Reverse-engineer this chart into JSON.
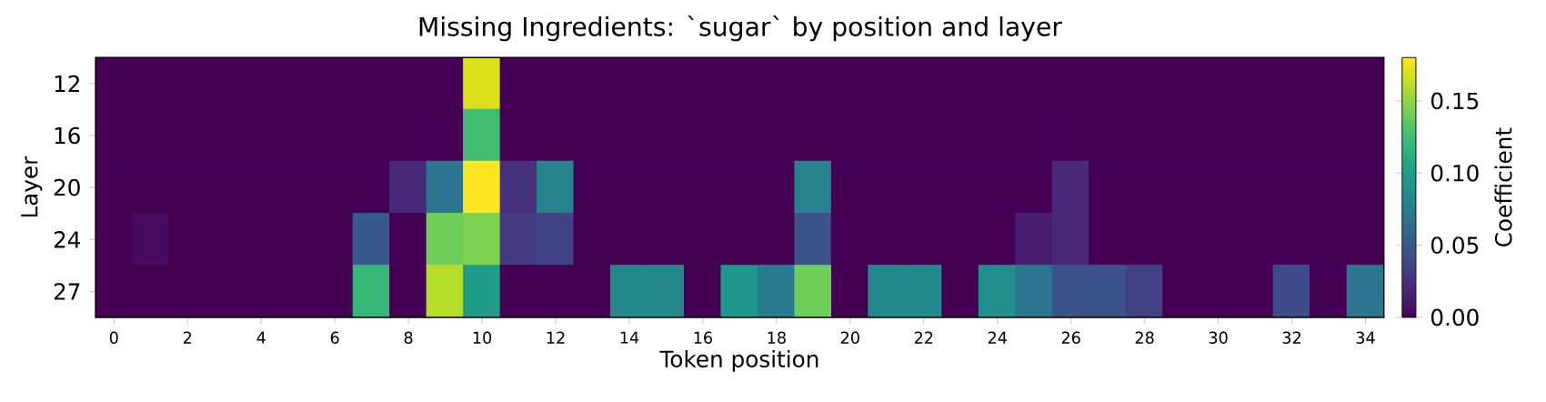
{
  "chart_data": {
    "type": "heatmap",
    "title": "Missing Ingredients: `sugar` by position and layer",
    "xlabel": "Token position",
    "ylabel": "Layer",
    "clabel": "Coefficient",
    "categories": [
      "0",
      null,
      "2",
      null,
      "4",
      null,
      "6",
      null,
      "8",
      null,
      "10",
      null,
      "12",
      null,
      "14",
      null,
      "16",
      null,
      "18",
      null,
      "20",
      null,
      "22",
      null,
      "24",
      null,
      "26",
      null,
      "28",
      null,
      "30",
      null,
      "32",
      null,
      "34"
    ],
    "y_categories": [
      "12",
      "16",
      "20",
      "24",
      "27"
    ],
    "cells": [
      [
        0,
        0,
        0,
        0,
        0,
        0,
        0,
        0,
        0,
        0,
        0.17,
        0,
        0,
        0,
        0,
        0,
        0,
        0,
        0,
        0,
        0,
        0,
        0,
        0,
        0,
        0,
        0,
        0,
        0,
        0,
        0,
        0,
        0,
        0,
        0
      ],
      [
        0,
        0,
        0,
        0,
        0,
        0,
        0,
        0,
        0,
        0,
        0.125,
        0,
        0,
        0,
        0,
        0,
        0,
        0,
        0,
        0,
        0,
        0,
        0,
        0,
        0,
        0,
        0,
        0,
        0,
        0,
        0,
        0,
        0,
        0,
        0
      ],
      [
        0,
        0,
        0,
        0,
        0,
        0,
        0,
        0,
        0.02,
        0.07,
        0.18,
        0.025,
        0.08,
        0,
        0,
        0,
        0,
        0,
        0,
        0.08,
        0,
        0,
        0,
        0,
        0,
        0,
        0.02,
        0,
        0,
        0,
        0,
        0,
        0,
        0,
        0
      ],
      [
        0,
        0.005,
        0,
        0,
        0,
        0,
        0,
        0.05,
        0,
        0.14,
        0.145,
        0.03,
        0.035,
        0,
        0,
        0,
        0,
        0,
        0,
        0.045,
        0,
        0,
        0,
        0,
        0,
        0.015,
        0.02,
        0,
        0,
        0,
        0,
        0,
        0,
        0,
        0
      ],
      [
        0,
        0,
        0,
        0,
        0,
        0,
        0,
        0.12,
        0,
        0.16,
        0.1,
        0,
        0,
        0,
        0.085,
        0.085,
        0,
        0.095,
        0.075,
        0.14,
        0,
        0.085,
        0.085,
        0,
        0.09,
        0.07,
        0.045,
        0.045,
        0.035,
        0,
        0,
        0,
        0.04,
        0,
        0.07
      ]
    ],
    "clim": [
      0,
      0.18
    ],
    "cticks": [
      {
        "value": 0,
        "label": "0.00"
      },
      {
        "value": 0.05,
        "label": "0.05"
      },
      {
        "value": 0.1,
        "label": "0.10"
      },
      {
        "value": 0.15,
        "label": "0.15"
      }
    ]
  }
}
